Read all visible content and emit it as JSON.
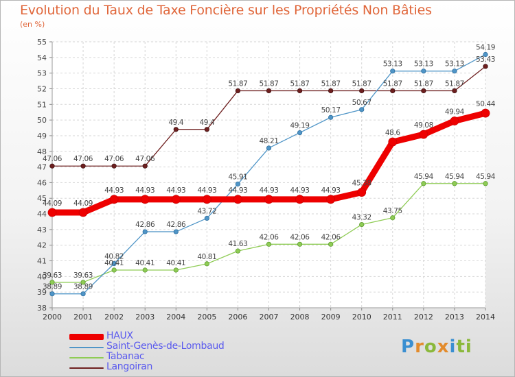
{
  "chart_data": {
    "type": "line",
    "title": "Evolution du Taux de Taxe Foncière sur les Propriétés Non Bâties",
    "subtitle": "(en %)",
    "x": [
      "2000",
      "2001",
      "2002",
      "2003",
      "2004",
      "2005",
      "2006",
      "2007",
      "2008",
      "2009",
      "2010",
      "2011",
      "2012",
      "2013",
      "2014"
    ],
    "y_ticks": [
      38,
      39,
      40,
      41,
      42,
      43,
      44,
      45,
      46,
      47,
      48,
      49,
      50,
      51,
      52,
      53,
      54,
      55
    ],
    "ylim": [
      38,
      55
    ],
    "grid": true,
    "legend_position": "bottom-left",
    "series": [
      {
        "name": "HAUX",
        "color": "#ee0000",
        "values": [
          44.09,
          44.09,
          44.93,
          44.93,
          44.93,
          44.93,
          44.93,
          44.93,
          44.93,
          44.93,
          45.38,
          48.6,
          49.08,
          49.94,
          50.44
        ],
        "labels": [
          "44.09",
          "44.09",
          "44.93",
          "44.93",
          "44.93",
          "44.93",
          "44.93",
          "44.93",
          "44.93",
          "44.93",
          "45.38",
          "48.6",
          "49.08",
          "49.94",
          "50.44"
        ]
      },
      {
        "name": "Saint-Genès-de-Lombaud",
        "color": "#4f95c7",
        "values": [
          38.89,
          38.89,
          40.82,
          42.86,
          42.86,
          43.72,
          45.91,
          48.21,
          49.19,
          50.17,
          50.67,
          53.13,
          53.13,
          53.13,
          54.19
        ],
        "labels": [
          "38.89",
          "38.89",
          "40.82",
          "42.86",
          "42.86",
          "43.72",
          "45.91",
          "48.21",
          "49.19",
          "50.17",
          "50.67",
          "53.13",
          "53.13",
          "53.13",
          "54.19"
        ]
      },
      {
        "name": "Tabanac",
        "color": "#8fcc55",
        "values": [
          39.63,
          39.63,
          40.41,
          40.41,
          40.41,
          40.81,
          41.63,
          42.06,
          42.06,
          42.06,
          43.32,
          43.75,
          45.94,
          45.94,
          45.94
        ],
        "labels": [
          "39.63",
          "39.63",
          "40.41",
          "40.41",
          "40.41",
          "40.81",
          "41.63",
          "42.06",
          "42.06",
          "42.06",
          "43.32",
          "43.75",
          "45.94",
          "45.94",
          "45.94"
        ]
      },
      {
        "name": "Langoiran",
        "color": "#6e1f1f",
        "values": [
          47.06,
          47.06,
          47.06,
          47.06,
          49.4,
          49.4,
          51.87,
          51.87,
          51.87,
          51.87,
          51.87,
          51.87,
          51.87,
          51.87,
          53.43
        ],
        "labels": [
          "47.06",
          "47.06",
          "47.06",
          "47.06",
          "49.4",
          "49.4",
          "51.87",
          "51.87",
          "51.87",
          "51.87",
          "51.87",
          "51.87",
          "51.87",
          "51.87",
          "53.43"
        ]
      }
    ]
  },
  "legend": {
    "items": [
      {
        "label": "HAUX",
        "color": "#ee0000"
      },
      {
        "label": "Saint-Genès-de-Lombaud",
        "color": "#4f95c7"
      },
      {
        "label": "Tabanac",
        "color": "#8fcc55"
      },
      {
        "label": "Langoiran",
        "color": "#6e1f1f"
      }
    ]
  },
  "brand": {
    "letters": [
      "P",
      "r",
      "o",
      "x",
      "i",
      "ti"
    ]
  }
}
